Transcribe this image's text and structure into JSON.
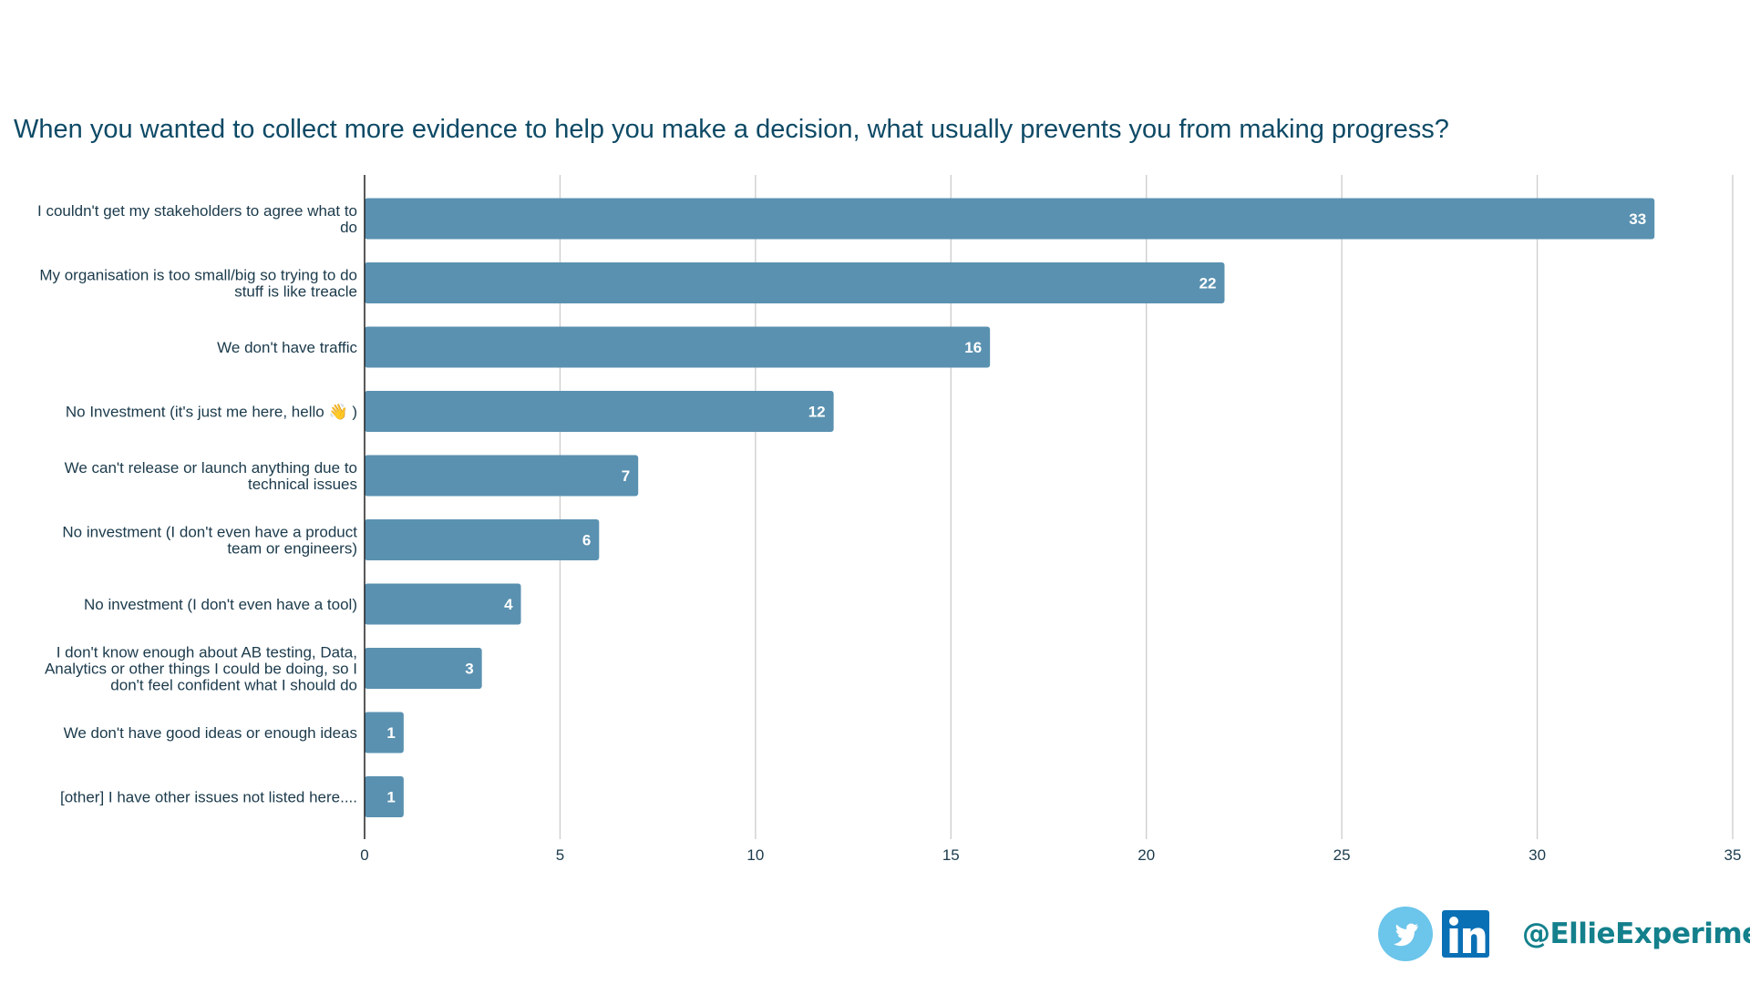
{
  "chart_data": {
    "type": "bar",
    "orientation": "horizontal",
    "title": "When you wanted to collect more evidence to help you make a decision, what usually prevents you from making progress?",
    "categories": [
      [
        "I couldn't get my stakeholders to agree what to",
        "do"
      ],
      [
        "My organisation is too small/big so trying to do",
        "stuff is like treacle"
      ],
      [
        "We don't have traffic"
      ],
      [
        "No Investment (it's just me here, hello 👋 )"
      ],
      [
        "We can't release or launch anything due to",
        "technical issues"
      ],
      [
        "No investment (I don't even have a product",
        "team or engineers)"
      ],
      [
        "No investment (I don't even have a tool)"
      ],
      [
        "I don't know enough about AB testing, Data,",
        "Analytics or other things I could be doing, so I",
        "don't feel confident what I should do"
      ],
      [
        "We don't have good ideas or enough ideas"
      ],
      [
        "[other] I have other issues not listed here...."
      ]
    ],
    "values": [
      33,
      22,
      16,
      12,
      7,
      6,
      4,
      3,
      1,
      1
    ],
    "xlim": [
      0,
      35
    ],
    "xticks": [
      "0",
      "5",
      "10",
      "15",
      "20",
      "25",
      "30",
      "35"
    ],
    "xlabel": "",
    "ylabel": "",
    "grid": true,
    "data_labels": true,
    "colors": {
      "bar": "#5a91b0",
      "title": "#0e4a66",
      "grid": "#cccccc",
      "axis": "#222222"
    }
  },
  "footer": {
    "handle": "@EllieExperiment",
    "icons": [
      "twitter-icon",
      "linkedin-icon"
    ],
    "twitter_color": "#6cc5ea",
    "linkedin_color": "#0a70b5",
    "linkedin_text": "in"
  }
}
